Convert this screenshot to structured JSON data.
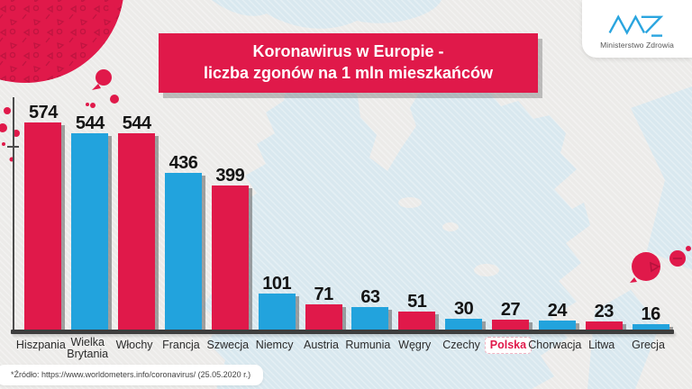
{
  "header": {
    "title_line1": "Koronawirus w Europie -",
    "title_line2": "liczba zgonów na 1 mln mieszkańców"
  },
  "logo": {
    "org": "Ministerstwo Zdrowia"
  },
  "chart_data": {
    "type": "bar",
    "title": "Koronawirus w Europie - liczba zgonów na 1 mln mieszkańców",
    "xlabel": "",
    "ylabel": "",
    "categories": [
      "Hiszpania",
      "Wielka Brytania",
      "Włochy",
      "Francja",
      "Szwecja",
      "Niemcy",
      "Austria",
      "Rumunia",
      "Węgry",
      "Czechy",
      "Polska",
      "Chorwacja",
      "Litwa",
      "Grecja"
    ],
    "values": [
      574,
      544,
      544,
      436,
      399,
      101,
      71,
      63,
      51,
      30,
      27,
      24,
      23,
      16
    ],
    "bar_colors": [
      "red",
      "blue",
      "red",
      "blue",
      "red",
      "blue",
      "red",
      "blue",
      "red",
      "blue",
      "red",
      "blue",
      "red",
      "blue"
    ],
    "highlighted_category": "Polska",
    "colors": {
      "red": "#e0194a",
      "blue": "#22a3dd"
    },
    "ylim": [
      0,
      600
    ],
    "grid": false,
    "legend": false
  },
  "footer": {
    "source": "*Źródło: https://www.worldometers.info/coronavirus/ (25.05.2020 r.)"
  }
}
